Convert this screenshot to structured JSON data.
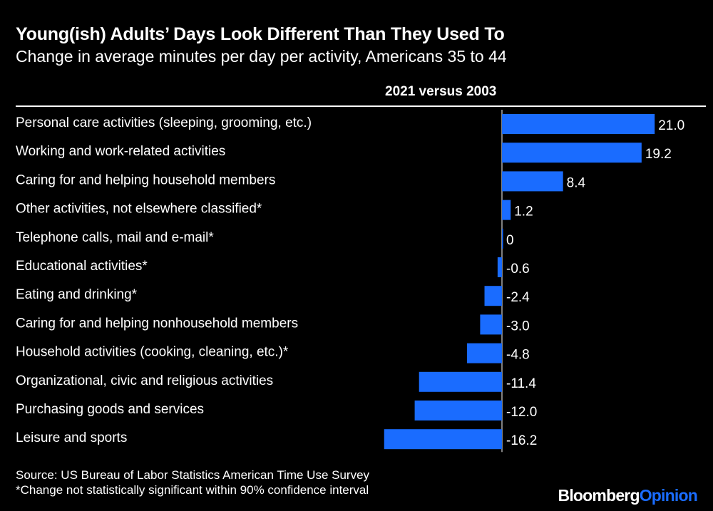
{
  "header": {
    "title": "Young(ish) Adults’ Days Look Different Than They Used To",
    "subtitle": "Change in average minutes per day per activity, Americans 35 to 44",
    "column_label": "2021 versus 2003"
  },
  "footer": {
    "source": "Source: US Bureau of Labor Statistics American Time Use Survey",
    "note": "*Change not statistically significant within 90% confidence interval",
    "logo_brand": "Bloomberg",
    "logo_section": "Opinion"
  },
  "colors": {
    "bar": "#1a6cff",
    "background": "#000000",
    "text": "#ffffff"
  },
  "chart_data": {
    "type": "bar",
    "orientation": "horizontal",
    "title": "Young(ish) Adults’ Days Look Different Than They Used To",
    "subtitle": "Change in average minutes per day per activity, Americans 35 to 44",
    "xlabel": "2021 versus 2003",
    "ylabel": "",
    "categories": [
      "Personal care activities (sleeping, grooming, etc.)",
      "Working and work-related activities",
      "Caring for and helping household members",
      "Other activities, not elsewhere classified*",
      "Telephone calls, mail and e-mail*",
      "Educational activities*",
      "Eating and drinking*",
      "Caring for and helping nonhousehold members",
      "Household activities (cooking, cleaning, etc.)*",
      "Organizational, civic and religious activities",
      "Purchasing goods and services",
      "Leisure and sports"
    ],
    "values": [
      21.0,
      19.2,
      8.4,
      1.2,
      0,
      -0.6,
      -2.4,
      -3.0,
      -4.8,
      -11.4,
      -12.0,
      -16.2
    ],
    "value_labels": [
      "21.0",
      "19.2",
      "8.4",
      "1.2",
      "0",
      "-0.6",
      "-2.4",
      "-3.0",
      "-4.8",
      "-11.4",
      "-12.0",
      "-16.2"
    ],
    "xlim": [
      -16.2,
      21.0
    ],
    "grid": false,
    "legend": "none"
  }
}
